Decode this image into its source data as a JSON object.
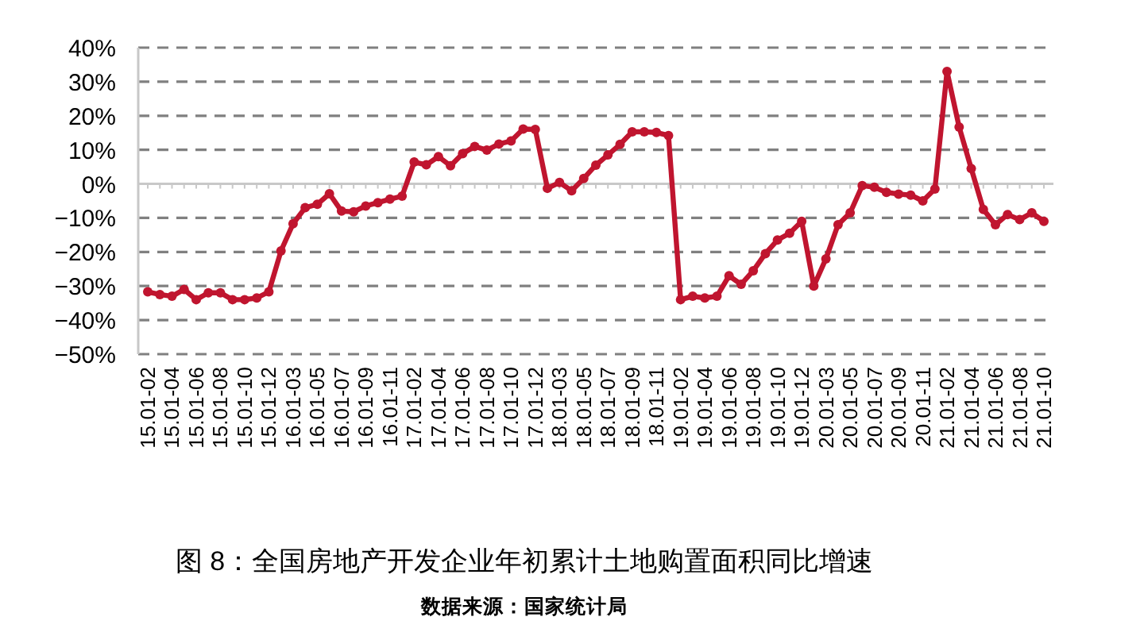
{
  "chart_data": {
    "type": "line",
    "title": "图 8：全国房地产开发企业年初累计土地购置面积同比增速",
    "annotations": [
      "数据来源：国家统计局"
    ],
    "categories": [
      "15.01-02",
      null,
      "15.01-04",
      null,
      "15.01-06",
      null,
      "15.01-08",
      null,
      "15.01-10",
      null,
      "15.01-12",
      null,
      "16.01-03",
      null,
      "16.01-05",
      null,
      "16.01-07",
      null,
      "16.01-09",
      null,
      "16.01-11",
      null,
      "17.01-02",
      null,
      "17.01-04",
      null,
      "17.01-06",
      null,
      "17.01-08",
      null,
      "17.01-10",
      null,
      "17.01-12",
      null,
      "18.01-03",
      null,
      "18.01-05",
      null,
      "18.01-07",
      null,
      "18.01-09",
      null,
      "18.01-11",
      null,
      "19.01-02",
      null,
      "19.01-04",
      null,
      "19.01-06",
      null,
      "19.01-08",
      null,
      "19.01-10",
      null,
      "19.01-12",
      null,
      "20.01-03",
      null,
      "20.01-05",
      null,
      "20.01-07",
      null,
      "20.01-09",
      null,
      "20.01-11",
      null,
      "21.01-02",
      null,
      "21.01-04",
      null,
      "21.01-06",
      null,
      "21.01-08",
      null,
      "21.01-10"
    ],
    "series": [
      {
        "color": "#c0152f",
        "values": [
          -31.7,
          -32.5,
          -33,
          -31,
          -34,
          -32,
          -32,
          -34,
          -34,
          -33.5,
          -31.7,
          -19.7,
          -11.7,
          -7,
          -6,
          -2.9,
          -8,
          -8.2,
          -6.5,
          -5.5,
          -4.5,
          -3.6,
          6.4,
          5.6,
          8,
          5.3,
          8.9,
          11,
          9.9,
          11.7,
          12.6,
          16.1,
          16,
          -1.3,
          0.4,
          -2,
          1.6,
          5.5,
          8.5,
          11.6,
          15.3,
          15.3,
          15.1,
          14.2,
          -34,
          -33,
          -33.5,
          -33,
          -27,
          -29.5,
          -25.5,
          -20.5,
          -16.5,
          -14.5,
          -11,
          -30,
          -22,
          -12,
          -8.5,
          -0.5,
          -1,
          -2.5,
          -3,
          -3.3,
          -5,
          -1.5,
          33,
          16.7,
          4.5,
          -7.5,
          -12,
          -9,
          -10.5,
          -8.5,
          -11
        ]
      }
    ],
    "ylim": [
      -50,
      40
    ],
    "yticks": [
      {
        "value": -50,
        "label": "−50%"
      },
      {
        "value": -40,
        "label": "−40%"
      },
      {
        "value": -30,
        "label": "−30%"
      },
      {
        "value": -20,
        "label": "−20%"
      },
      {
        "value": -10,
        "label": "−10%"
      },
      {
        "value": 0,
        "label": "0%"
      },
      {
        "value": 10,
        "label": "10%"
      },
      {
        "value": 20,
        "label": "20%"
      },
      {
        "value": 30,
        "label": "30%"
      },
      {
        "value": 40,
        "label": "40%"
      }
    ],
    "grid": "y",
    "marker": "circle",
    "line_style": "solid"
  }
}
